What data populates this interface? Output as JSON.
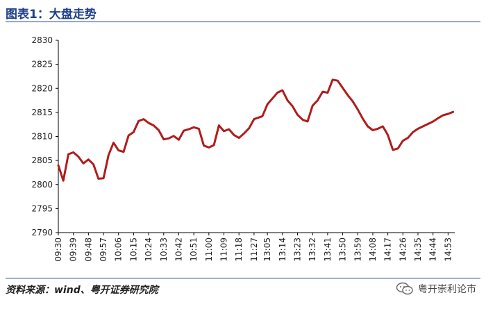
{
  "header": {
    "title": "图表1：大盘走势"
  },
  "footer": {
    "source": "资料来源：wind、粤开证券研究院",
    "watermark": "粤开崇利论市"
  },
  "colors": {
    "line": "#b01c1c",
    "title": "#1f3f8a",
    "axis": "#000000"
  },
  "icons": {
    "watermark_icon": "wechat-icon"
  },
  "chart_data": {
    "type": "line",
    "title": "",
    "xlabel": "",
    "ylabel": "",
    "ylim": [
      2790,
      2830
    ],
    "yticks": [
      2790,
      2795,
      2800,
      2805,
      2810,
      2815,
      2820,
      2825,
      2830
    ],
    "xticks": [
      "09:30",
      "09:39",
      "09:48",
      "09:57",
      "10:06",
      "10:15",
      "10:24",
      "10:33",
      "10:42",
      "10:51",
      "11:00",
      "11:09",
      "11:18",
      "11:27",
      "13:05",
      "13:14",
      "13:23",
      "13:32",
      "13:41",
      "13:50",
      "13:59",
      "14:08",
      "14:17",
      "14:26",
      "14:35",
      "14:44",
      "14:53"
    ],
    "grid": false,
    "legend": "none",
    "series": [
      {
        "name": "",
        "x": [
          "09:30",
          "09:33",
          "09:36",
          "09:39",
          "09:42",
          "09:45",
          "09:48",
          "09:51",
          "09:54",
          "09:57",
          "10:00",
          "10:03",
          "10:06",
          "10:09",
          "10:12",
          "10:15",
          "10:18",
          "10:21",
          "10:24",
          "10:27",
          "10:30",
          "10:33",
          "10:36",
          "10:39",
          "10:42",
          "10:45",
          "10:48",
          "10:51",
          "10:54",
          "10:57",
          "11:00",
          "11:03",
          "11:06",
          "11:09",
          "11:12",
          "11:15",
          "11:18",
          "11:21",
          "11:24",
          "11:27",
          "13:02",
          "13:05",
          "13:08",
          "13:11",
          "13:14",
          "13:17",
          "13:20",
          "13:23",
          "13:26",
          "13:29",
          "13:32",
          "13:35",
          "13:38",
          "13:41",
          "13:44",
          "13:47",
          "13:50",
          "13:53",
          "13:56",
          "13:59",
          "14:02",
          "14:05",
          "14:08",
          "14:11",
          "14:14",
          "14:17",
          "14:20",
          "14:23",
          "14:26",
          "14:29",
          "14:32",
          "14:35",
          "14:38",
          "14:41",
          "14:44",
          "14:47",
          "14:50",
          "14:53",
          "14:56"
        ],
        "values": [
          2804.0,
          2800.8,
          2806.3,
          2806.7,
          2805.8,
          2804.4,
          2805.2,
          2804.2,
          2801.2,
          2801.3,
          2806.1,
          2808.7,
          2807.1,
          2806.8,
          2810.2,
          2810.9,
          2813.2,
          2813.6,
          2812.8,
          2812.3,
          2811.3,
          2809.4,
          2809.6,
          2810.1,
          2809.3,
          2811.2,
          2811.5,
          2811.9,
          2811.6,
          2808.1,
          2807.7,
          2808.2,
          2812.3,
          2811.1,
          2811.5,
          2810.3,
          2809.7,
          2810.6,
          2811.7,
          2813.6,
          2814.2,
          2816.7,
          2817.9,
          2819.1,
          2819.6,
          2817.5,
          2816.3,
          2814.5,
          2813.5,
          2813.1,
          2816.4,
          2817.5,
          2819.3,
          2819.1,
          2821.8,
          2821.6,
          2820.1,
          2818.6,
          2817.3,
          2815.6,
          2813.7,
          2812.1,
          2811.3,
          2811.6,
          2812.1,
          2810.3,
          2807.2,
          2807.5,
          2809.1,
          2809.7,
          2810.9,
          2811.6,
          2812.1,
          2812.6,
          2813.1,
          2813.8,
          2814.4,
          2814.7,
          2815.1
        ]
      }
    ]
  }
}
